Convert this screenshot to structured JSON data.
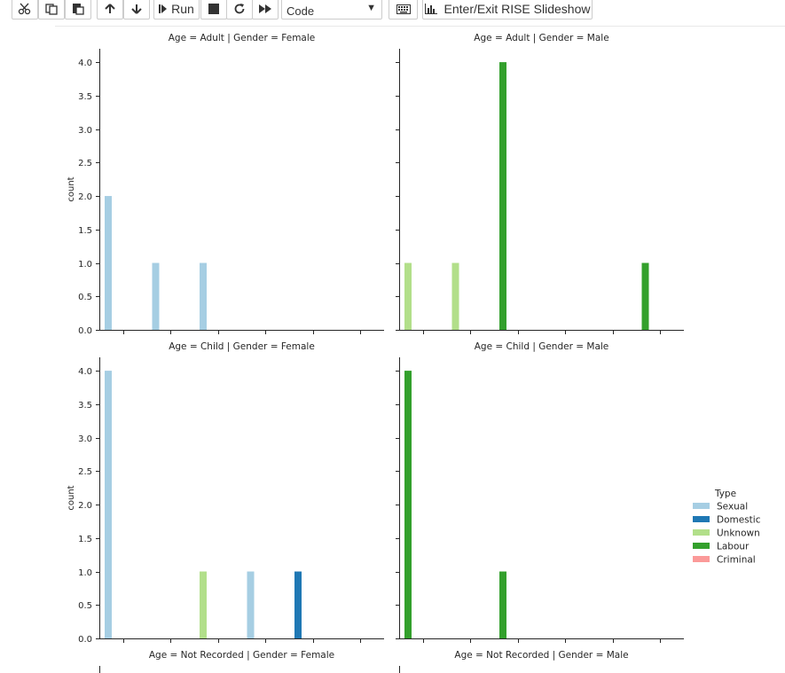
{
  "toolbar": {
    "cut_icon": "scissors-icon",
    "copy_icon": "copy-icon",
    "paste_icon": "paste-icon",
    "up_icon": "arrow-up-icon",
    "down_icon": "arrow-down-icon",
    "run_label": "Run",
    "stop_icon": "stop-icon",
    "restart_icon": "restart-icon",
    "fastforward_icon": "fast-forward-icon",
    "cell_type": "Code",
    "keyboard_icon": "keyboard-icon",
    "rise_label": "Enter/Exit RISE Slideshow"
  },
  "chart_data": {
    "type": "bar",
    "facets_row": "Age",
    "facets_col": "Gender",
    "ylabel": "count",
    "ylim": [
      0,
      4.2
    ],
    "yticks": [
      "0.0",
      "0.5",
      "1.0",
      "1.5",
      "2.0",
      "2.5",
      "3.0",
      "3.5",
      "4.0"
    ],
    "slots": 6,
    "colors": {
      "Sexual": "#a6cee3",
      "Domestic": "#1f78b4",
      "Unknown": "#b2df8a",
      "Labour": "#33a02c",
      "Criminal": "#fb9a99"
    },
    "legend": {
      "title": "Type",
      "entries": [
        "Sexual",
        "Domestic",
        "Unknown",
        "Labour",
        "Criminal"
      ]
    },
    "panels": [
      {
        "title": "Age = Adult | Gender = Female",
        "bars": [
          {
            "slot": 0,
            "type": "Sexual",
            "value": 2
          },
          {
            "slot": 1,
            "type": "Sexual",
            "value": 1
          },
          {
            "slot": 2,
            "type": "Sexual",
            "value": 1
          }
        ]
      },
      {
        "title": "Age = Adult | Gender = Male",
        "bars": [
          {
            "slot": 0,
            "type": "Unknown",
            "value": 1
          },
          {
            "slot": 1,
            "type": "Unknown",
            "value": 1
          },
          {
            "slot": 2,
            "type": "Labour",
            "value": 4
          },
          {
            "slot": 5,
            "type": "Labour",
            "value": 1
          }
        ]
      },
      {
        "title": "Age = Child | Gender = Female",
        "bars": [
          {
            "slot": 0,
            "type": "Sexual",
            "value": 4
          },
          {
            "slot": 2,
            "type": "Unknown",
            "value": 1
          },
          {
            "slot": 3,
            "type": "Sexual",
            "value": 1
          },
          {
            "slot": 4,
            "type": "Domestic",
            "value": 1
          }
        ]
      },
      {
        "title": "Age = Child | Gender = Male",
        "bars": [
          {
            "slot": 0,
            "type": "Labour",
            "value": 4
          },
          {
            "slot": 2,
            "type": "Labour",
            "value": 1
          }
        ]
      },
      {
        "title": "Age = Not Recorded | Gender = Female",
        "bars": []
      },
      {
        "title": "Age = Not Recorded | Gender = Male",
        "bars": []
      }
    ]
  }
}
